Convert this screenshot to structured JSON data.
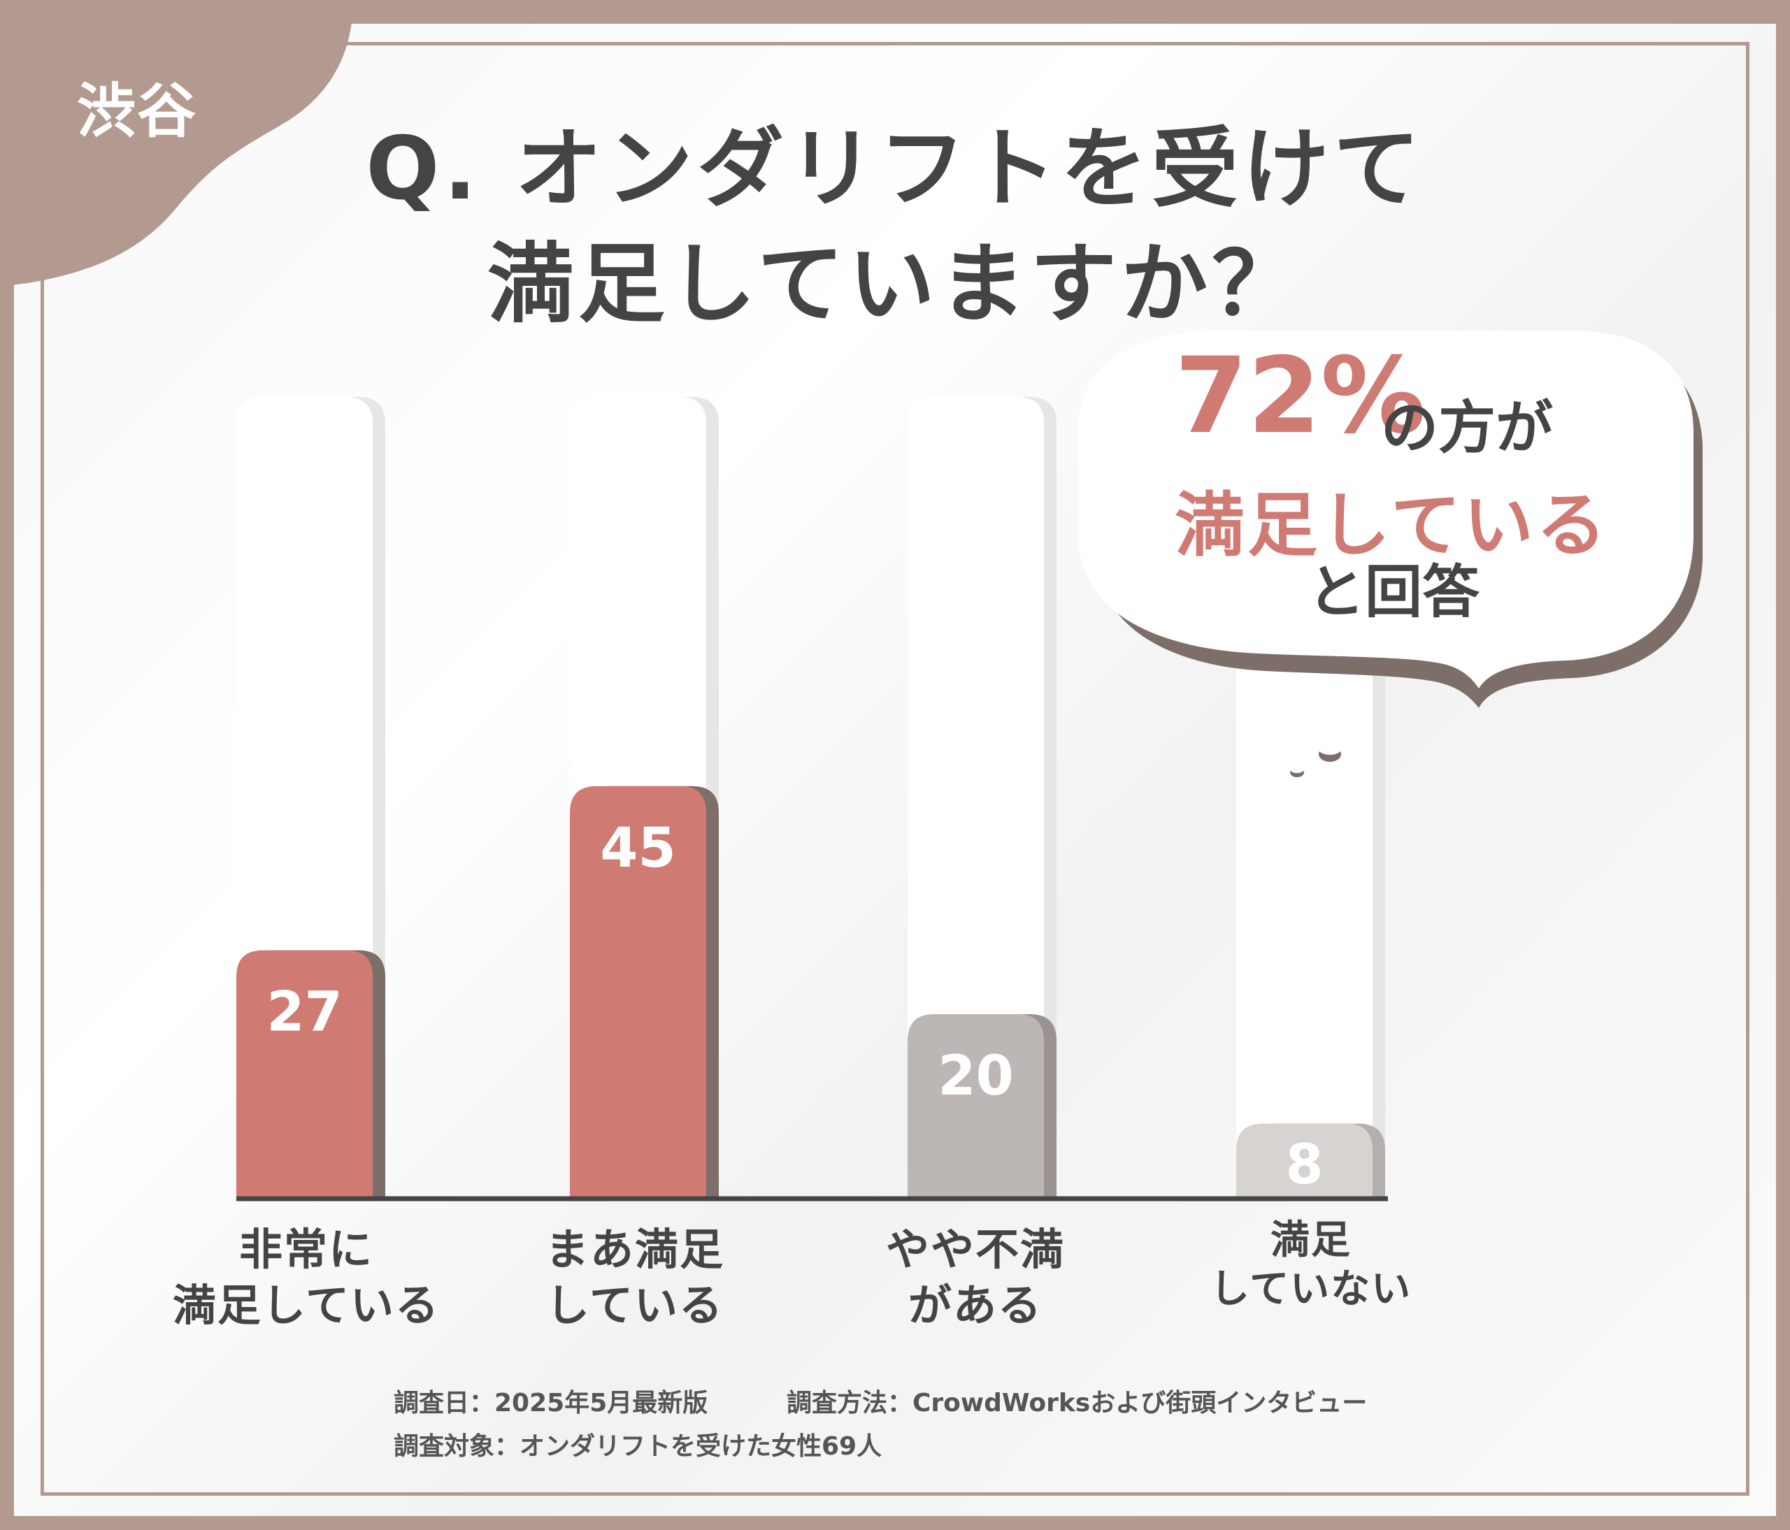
{
  "corner_tag": "渋谷",
  "title": {
    "line1": "Q. オンダリフトを受けて",
    "line2": "満足していますか？"
  },
  "callout": {
    "percent": "72%",
    "suffix": "の方が",
    "highlight": "満足している",
    "closing": "と回答"
  },
  "chart_data": {
    "type": "bar",
    "title": "Q. オンダリフトを受けて満足していますか？",
    "categories": [
      "非常に満足している",
      "まあ満足している",
      "やや不満がある",
      "満足していない"
    ],
    "values": [
      27,
      45,
      20,
      8
    ],
    "value_labels": [
      "27",
      "45",
      "20",
      "8"
    ],
    "ylim": [
      0,
      100
    ],
    "xlabel": "",
    "ylabel": "",
    "grid": false,
    "bar_colors": [
      "#d07a74",
      "#d07a74",
      "#bcb7b4",
      "#d6d3d1"
    ],
    "shadow_colors": [
      "#7d6e69",
      "#7d6e69",
      "#9a9390",
      "#b3afad"
    ],
    "axis_color": "#444444"
  },
  "x_labels": [
    {
      "line1": "非常に",
      "line2": "満足している"
    },
    {
      "line1": "まあ満足",
      "line2": "している"
    },
    {
      "line1": "やや不満",
      "line2": "がある"
    },
    {
      "line1": "満足",
      "line2": "していない"
    }
  ],
  "footnotes": {
    "date": "調査日：2025年5月最新版",
    "method": "調査方法：CrowdWorksおよび街頭インタビュー",
    "target": "調査対象：オンダリフトを受けた女性69人"
  },
  "colors": {
    "brand": "#b39a91",
    "accent": "#d07a74",
    "text": "#444444"
  }
}
